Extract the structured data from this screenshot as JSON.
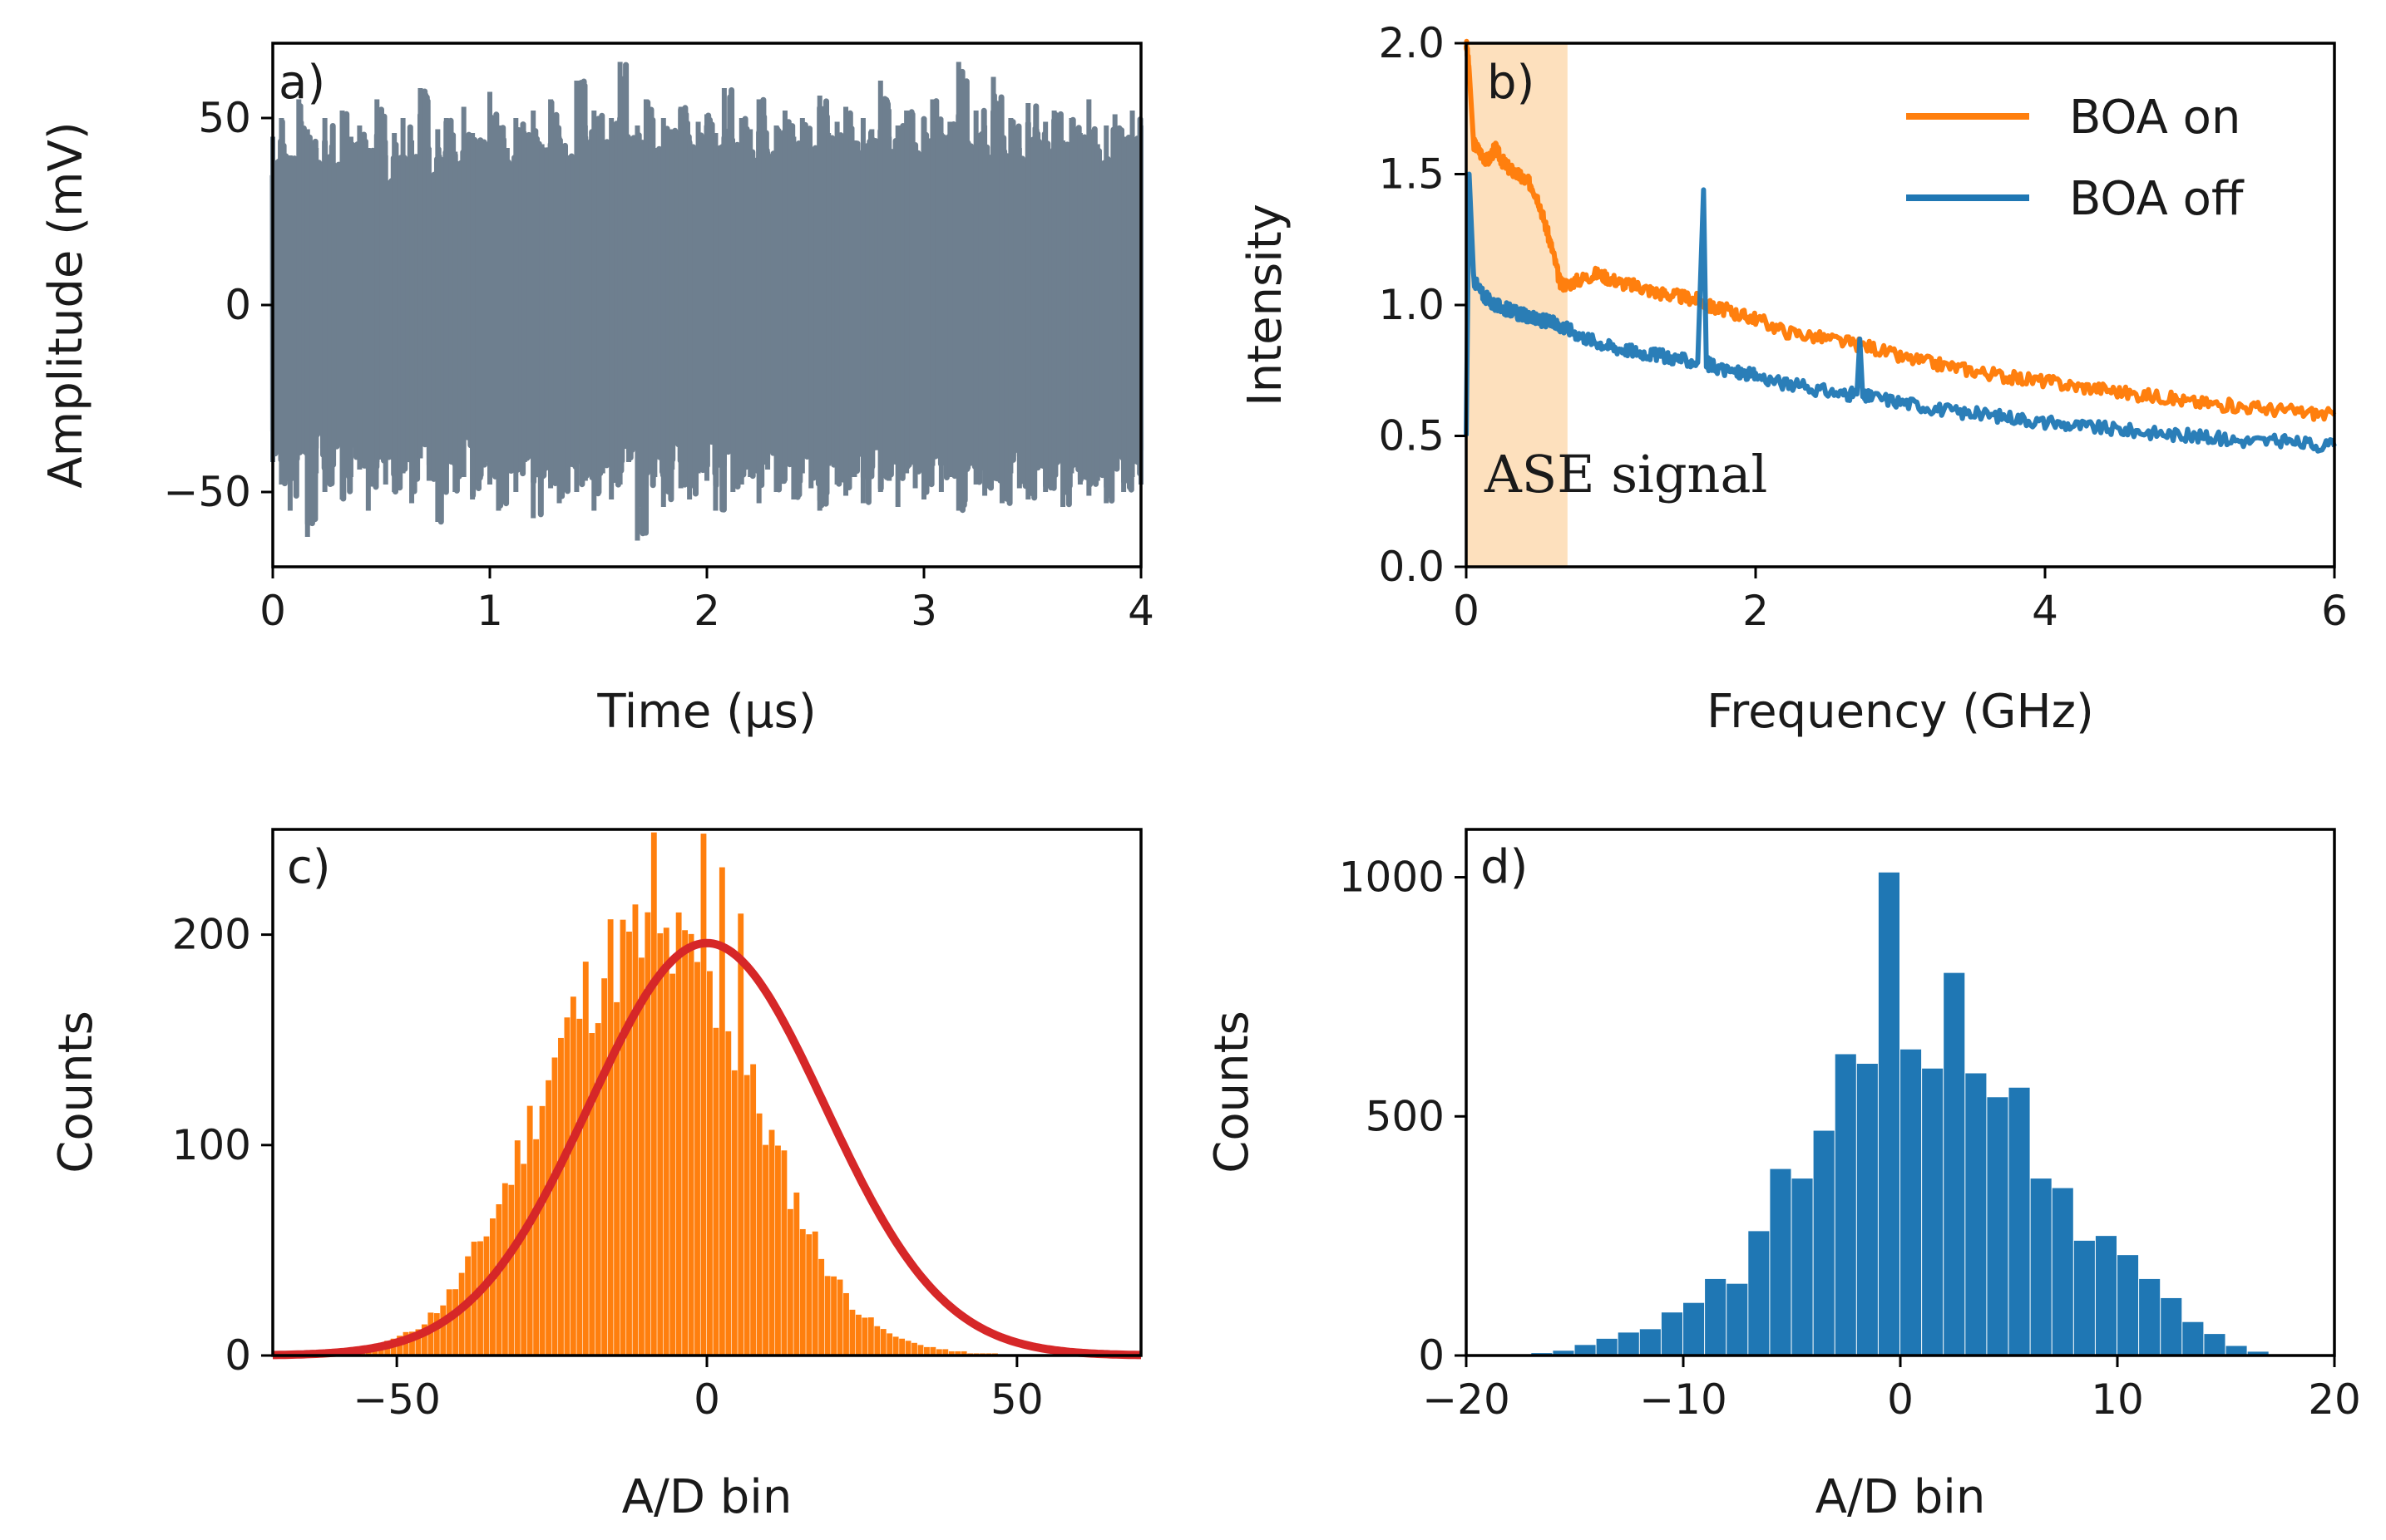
{
  "chart_data": [
    {
      "panel": "a)",
      "type": "line",
      "xlabel": "Time (μs)",
      "ylabel": "Amplitude (mV)",
      "xlim": [
        0,
        4
      ],
      "ylim": [
        -70,
        70
      ],
      "xticks": [
        0,
        1,
        2,
        3,
        4
      ],
      "yticks": [
        -50,
        0,
        50
      ],
      "ytick_labels": [
        "−50",
        "0",
        "50"
      ],
      "series": [
        {
          "color": "#6e7f8f",
          "description_values": {
            "center": 0,
            "typical_range": [
              -45,
              45
            ],
            "extremes": [
              -63,
              65
            ]
          },
          "x": [
            0.0,
            0.04,
            0.08,
            0.12,
            0.16,
            0.2,
            0.24,
            0.28,
            0.32,
            0.36,
            0.4,
            0.44,
            0.48,
            0.52,
            0.56,
            0.6,
            0.64,
            0.68,
            0.72,
            0.76,
            0.8,
            0.84,
            0.88,
            0.92,
            0.96,
            1.0,
            1.04,
            1.08,
            1.12,
            1.16,
            1.2,
            1.24,
            1.28,
            1.32,
            1.36,
            1.4,
            1.44,
            1.48,
            1.52,
            1.56,
            1.6,
            1.64,
            1.68,
            1.72,
            1.76,
            1.8,
            1.84,
            1.88,
            1.92,
            1.96,
            2.0,
            2.04,
            2.08,
            2.12,
            2.16,
            2.2,
            2.24,
            2.28,
            2.32,
            2.36,
            2.4,
            2.44,
            2.48,
            2.52,
            2.56,
            2.6,
            2.64,
            2.68,
            2.72,
            2.76,
            2.8,
            2.84,
            2.88,
            2.92,
            2.96,
            3.0,
            3.04,
            3.08,
            3.12,
            3.16,
            3.2,
            3.24,
            3.28,
            3.32,
            3.36,
            3.4,
            3.44,
            3.48,
            3.52,
            3.56,
            3.6,
            3.64,
            3.68,
            3.72,
            3.76,
            3.8,
            3.84,
            3.88,
            3.92,
            3.96,
            4.0
          ],
          "y_max": [
            45,
            50,
            40,
            55,
            47,
            42,
            50,
            38,
            52,
            45,
            48,
            42,
            55,
            40,
            46,
            50,
            44,
            58,
            42,
            47,
            50,
            41,
            53,
            46,
            44,
            57,
            48,
            42,
            50,
            46,
            52,
            43,
            55,
            45,
            40,
            60,
            48,
            52,
            44,
            50,
            65,
            45,
            48,
            55,
            42,
            50,
            47,
            53,
            44,
            49,
            51,
            46,
            58,
            43,
            50,
            47,
            55,
            41,
            48,
            52,
            45,
            50,
            42,
            56,
            46,
            49,
            53,
            44,
            50,
            47,
            60,
            45,
            48,
            52,
            43,
            50,
            55,
            46,
            49,
            65,
            44,
            52,
            48,
            61,
            45,
            50,
            42,
            54,
            47,
            49,
            52,
            44,
            50,
            46,
            55,
            43,
            48,
            51,
            45,
            52,
            48
          ],
          "y_min": [
            -42,
            -48,
            -55,
            -40,
            -62,
            -45,
            -50,
            -38,
            -52,
            -46,
            -44,
            -55,
            -42,
            -48,
            -50,
            -45,
            -53,
            -41,
            -47,
            -58,
            -44,
            -50,
            -46,
            -52,
            -43,
            -48,
            -55,
            -45,
            -50,
            -42,
            -57,
            -46,
            -49,
            -53,
            -44,
            -50,
            -47,
            -55,
            -45,
            -52,
            -48,
            -42,
            -63,
            -50,
            -46,
            -54,
            -44,
            -49,
            -52,
            -45,
            -47,
            -55,
            -43,
            -50,
            -48,
            -46,
            -53,
            -44,
            -50,
            -47,
            -52,
            -45,
            -49,
            -55,
            -43,
            -48,
            -51,
            -46,
            -53,
            -44,
            -50,
            -47,
            -54,
            -45,
            -49,
            -52,
            -43,
            -50,
            -46,
            -55,
            -44,
            -48,
            -51,
            -47,
            -53,
            -45,
            -49,
            -52,
            -44,
            -50,
            -46,
            -54,
            -45,
            -48,
            -51,
            -47,
            -53,
            -44,
            -50,
            -46,
            -48
          ]
        }
      ]
    },
    {
      "panel": "b)",
      "type": "line",
      "xlabel": "Frequency (GHz)",
      "ylabel": "Intensity",
      "xlim": [
        0,
        6
      ],
      "ylim": [
        0,
        2
      ],
      "xticks": [
        0,
        2,
        4,
        6
      ],
      "yticks": [
        0.0,
        0.5,
        1.0,
        1.5,
        2.0
      ],
      "ytick_labels": [
        "0.0",
        "0.5",
        "1.0",
        "1.5",
        "2.0"
      ],
      "highlight": {
        "x_range": [
          0,
          0.7
        ],
        "color": "#fde0bd",
        "label": "ASE signal"
      },
      "legend": {
        "placement": "top-right"
      },
      "series": [
        {
          "name": "BOA on",
          "color": "#ff7f0e",
          "x": [
            0.0,
            0.02,
            0.05,
            0.1,
            0.15,
            0.2,
            0.25,
            0.3,
            0.35,
            0.4,
            0.45,
            0.5,
            0.55,
            0.6,
            0.65,
            0.7,
            0.8,
            0.9,
            1.0,
            1.1,
            1.2,
            1.3,
            1.4,
            1.5,
            1.6,
            1.7,
            1.8,
            1.9,
            2.0,
            2.2,
            2.4,
            2.6,
            2.8,
            3.0,
            3.2,
            3.4,
            3.6,
            3.8,
            4.0,
            4.2,
            4.4,
            4.6,
            4.8,
            5.0,
            5.2,
            5.4,
            5.6,
            5.8,
            6.0
          ],
          "y": [
            2.0,
            1.9,
            1.62,
            1.58,
            1.55,
            1.6,
            1.55,
            1.52,
            1.5,
            1.48,
            1.46,
            1.4,
            1.3,
            1.2,
            1.08,
            1.08,
            1.1,
            1.12,
            1.1,
            1.08,
            1.07,
            1.05,
            1.04,
            1.03,
            1.02,
            0.99,
            0.98,
            0.96,
            0.95,
            0.9,
            0.88,
            0.86,
            0.84,
            0.8,
            0.78,
            0.76,
            0.74,
            0.72,
            0.71,
            0.69,
            0.68,
            0.66,
            0.65,
            0.63,
            0.62,
            0.61,
            0.6,
            0.59,
            0.58
          ]
        },
        {
          "name": "BOA off",
          "color": "#1f77b4",
          "x": [
            0.0,
            0.02,
            0.05,
            0.1,
            0.15,
            0.2,
            0.25,
            0.3,
            0.35,
            0.4,
            0.45,
            0.5,
            0.55,
            0.6,
            0.65,
            0.7,
            0.8,
            0.9,
            1.0,
            1.1,
            1.2,
            1.3,
            1.4,
            1.5,
            1.6,
            1.64,
            1.66,
            1.68,
            1.7,
            1.8,
            1.9,
            2.0,
            2.2,
            2.4,
            2.6,
            2.7,
            2.72,
            2.74,
            2.8,
            3.0,
            3.2,
            3.4,
            3.6,
            3.8,
            4.0,
            4.2,
            4.4,
            4.6,
            4.8,
            5.0,
            5.2,
            5.4,
            5.6,
            5.8,
            6.0
          ],
          "y": [
            0.5,
            1.5,
            1.1,
            1.05,
            1.02,
            1.0,
            0.99,
            0.98,
            0.97,
            0.96,
            0.95,
            0.94,
            0.94,
            0.93,
            0.92,
            0.91,
            0.88,
            0.86,
            0.84,
            0.83,
            0.82,
            0.81,
            0.8,
            0.79,
            0.78,
            1.44,
            0.78,
            0.77,
            0.77,
            0.75,
            0.74,
            0.73,
            0.7,
            0.68,
            0.66,
            0.66,
            0.87,
            0.65,
            0.65,
            0.63,
            0.61,
            0.59,
            0.58,
            0.57,
            0.55,
            0.54,
            0.53,
            0.52,
            0.51,
            0.5,
            0.49,
            0.48,
            0.48,
            0.47,
            0.46
          ]
        }
      ]
    },
    {
      "panel": "c)",
      "type": "bar",
      "xlabel": "A/D bin",
      "ylabel": "Counts",
      "xlim": [
        -70,
        70
      ],
      "ylim": [
        0,
        250
      ],
      "xticks": [
        -50,
        0,
        50
      ],
      "xtick_labels": [
        "−50",
        "0",
        "50"
      ],
      "yticks": [
        0,
        100,
        200
      ],
      "series": [
        {
          "name": "histogram",
          "color": "#ff7f0e",
          "bin_width": 1,
          "bin_start": -60,
          "values": [
            2,
            2,
            3,
            3,
            4,
            4,
            5,
            6,
            7,
            8,
            9,
            10,
            12,
            14,
            16,
            19,
            22,
            25,
            29,
            33,
            38,
            43,
            48,
            54,
            60,
            66,
            73,
            80,
            87,
            94,
            102,
            110,
            118,
            125,
            133,
            140,
            147,
            154,
            160,
            166,
            171,
            176,
            180,
            184,
            188,
            190,
            192,
            194,
            195,
            196,
            196,
            230,
            195,
            194,
            192,
            190,
            188,
            184,
            180,
            176,
            171,
            166,
            160,
            154,
            147,
            140,
            133,
            125,
            118,
            110,
            102,
            94,
            87,
            80,
            73,
            66,
            60,
            54,
            48,
            43,
            38,
            33,
            29,
            25,
            22,
            19,
            16,
            14,
            12,
            10,
            9,
            8,
            7,
            6,
            5,
            4,
            4,
            3,
            3,
            2,
            2,
            2,
            1,
            1,
            1,
            1,
            1,
            0,
            0,
            0,
            0,
            0,
            0,
            0,
            0,
            0,
            0,
            0,
            0,
            0,
            0
          ],
          "value_jitter_note": "",
          "observed_peaks": [
            {
              "x": -1,
              "y": 248
            },
            {
              "x": 2,
              "y": 232
            },
            {
              "x": 5,
              "y": 210
            }
          ]
        },
        {
          "name": "gaussian fit",
          "type": "line",
          "color": "#d62728",
          "amplitude": 196,
          "mean": 0,
          "sigma": 19
        }
      ]
    },
    {
      "panel": "d)",
      "type": "bar",
      "xlabel": "A/D bin",
      "ylabel": "Counts",
      "xlim": [
        -20,
        20
      ],
      "ylim": [
        0,
        1100
      ],
      "xticks": [
        -20,
        -10,
        0,
        10,
        20
      ],
      "xtick_labels": [
        "−20",
        "−10",
        "0",
        "10",
        "20"
      ],
      "yticks": [
        0,
        500,
        1000
      ],
      "series": [
        {
          "name": "histogram",
          "color": "#1f77b4",
          "bin_edges": [
            -18,
            -17,
            -16,
            -15,
            -14,
            -13,
            -12,
            -11,
            -10,
            -9,
            -8,
            -7,
            -6,
            -5,
            -4,
            -3,
            -2,
            -1,
            0,
            1,
            2,
            3,
            4,
            5,
            6,
            7,
            8,
            9,
            10,
            11,
            12,
            13,
            14,
            15,
            16,
            17
          ],
          "values": [
            2,
            5,
            10,
            22,
            35,
            48,
            55,
            90,
            110,
            160,
            150,
            260,
            390,
            370,
            470,
            630,
            610,
            1010,
            640,
            600,
            800,
            590,
            540,
            560,
            370,
            350,
            240,
            250,
            210,
            160,
            120,
            70,
            45,
            20,
            8
          ]
        }
      ]
    }
  ],
  "legend": {
    "boa_on": "BOA on",
    "boa_off": "BOA off"
  },
  "annotation": {
    "ase": "ASE signal"
  }
}
